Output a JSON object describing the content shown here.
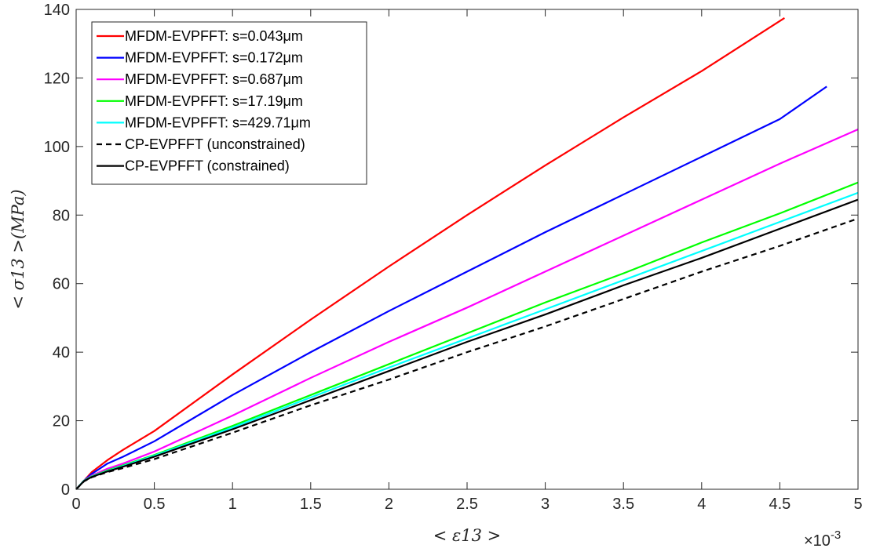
{
  "chart_data": {
    "type": "line",
    "xlabel": "< ε13 >",
    "ylabel": "< σ13 >(MPa)",
    "x_multiplier_label": "×10",
    "x_multiplier_exponent": "-3",
    "xlim": [
      0,
      5
    ],
    "ylim": [
      0,
      140
    ],
    "x_ticks": [
      "0",
      "0.5",
      "1",
      "1.5",
      "2",
      "2.5",
      "3",
      "3.5",
      "4",
      "4.5",
      "5"
    ],
    "y_ticks": [
      "0",
      "20",
      "40",
      "60",
      "80",
      "100",
      "120",
      "140"
    ],
    "grid": false,
    "legend_position": "top-left",
    "series": [
      {
        "name": "MFDM-EVPFFT: s=0.043μm",
        "color": "#ff0000",
        "dash": "solid",
        "x": [
          0,
          0.05,
          0.1,
          0.2,
          0.3,
          0.5,
          1.0,
          1.5,
          2.0,
          2.5,
          3.0,
          3.5,
          4.0,
          4.53
        ],
        "y": [
          0,
          2.5,
          5,
          8.5,
          11.5,
          17,
          33.5,
          49.5,
          65,
          80,
          94.5,
          108.5,
          122,
          137.5
        ]
      },
      {
        "name": "MFDM-EVPFFT: s=0.172μm",
        "color": "#0000ff",
        "dash": "solid",
        "x": [
          0,
          0.05,
          0.1,
          0.2,
          0.3,
          0.5,
          1.0,
          1.5,
          2.0,
          2.5,
          3.0,
          3.5,
          4.0,
          4.5,
          4.8
        ],
        "y": [
          0,
          2.5,
          4.5,
          7.5,
          9.5,
          14,
          27.5,
          40,
          52,
          63.5,
          75,
          86,
          97,
          108,
          117.5
        ]
      },
      {
        "name": "MFDM-EVPFFT: s=0.687μm",
        "color": "#ff00ff",
        "dash": "solid",
        "x": [
          0,
          0.05,
          0.1,
          0.2,
          0.3,
          0.5,
          1.0,
          1.5,
          2.0,
          2.5,
          3.0,
          3.5,
          4.0,
          4.5,
          5.0
        ],
        "y": [
          0,
          2.5,
          4,
          6,
          7.5,
          11,
          21.5,
          32.5,
          43,
          53,
          63.5,
          74,
          84.5,
          95,
          105
        ]
      },
      {
        "name": "MFDM-EVPFFT: s=17.19μm",
        "color": "#00ff00",
        "dash": "solid",
        "x": [
          0,
          0.05,
          0.1,
          0.2,
          0.3,
          0.5,
          1.0,
          1.5,
          2.0,
          2.5,
          3.0,
          3.5,
          4.0,
          4.5,
          5.0
        ],
        "y": [
          0,
          2.5,
          3.8,
          5.5,
          7,
          10,
          18.5,
          27.5,
          36.5,
          45.5,
          54.5,
          63,
          72,
          80.5,
          89.5
        ]
      },
      {
        "name": "MFDM-EVPFFT: s=429.71μm",
        "color": "#00ffff",
        "dash": "solid",
        "x": [
          0,
          0.05,
          0.1,
          0.2,
          0.3,
          0.5,
          1.0,
          1.5,
          2.0,
          2.5,
          3.0,
          3.5,
          4.0,
          4.5,
          5.0
        ],
        "y": [
          0,
          2.5,
          3.7,
          5.3,
          6.8,
          9.8,
          18,
          26.8,
          35.5,
          44,
          52.5,
          61,
          69.5,
          78,
          86.5
        ]
      },
      {
        "name": "CP-EVPFFT (unconstrained)",
        "color": "#000000",
        "dash": "dashed",
        "x": [
          0,
          0.05,
          0.1,
          0.2,
          0.3,
          0.5,
          1.0,
          1.5,
          2.0,
          2.5,
          3.0,
          3.5,
          4.0,
          4.5,
          5.0
        ],
        "y": [
          0,
          2.3,
          3.5,
          5,
          6.2,
          8.8,
          16.5,
          24.5,
          32,
          40,
          47.5,
          55.5,
          63.5,
          71,
          79
        ]
      },
      {
        "name": "CP-EVPFFT (constrained)",
        "color": "#000000",
        "dash": "solid",
        "x": [
          0,
          0.05,
          0.1,
          0.2,
          0.3,
          0.5,
          1.0,
          1.5,
          2.0,
          2.5,
          3.0,
          3.5,
          4.0,
          4.5,
          5.0
        ],
        "y": [
          0,
          2.4,
          3.6,
          5.2,
          6.6,
          9.5,
          17.5,
          26,
          34.5,
          43,
          51,
          59.5,
          67.5,
          76,
          84.5
        ]
      }
    ]
  }
}
